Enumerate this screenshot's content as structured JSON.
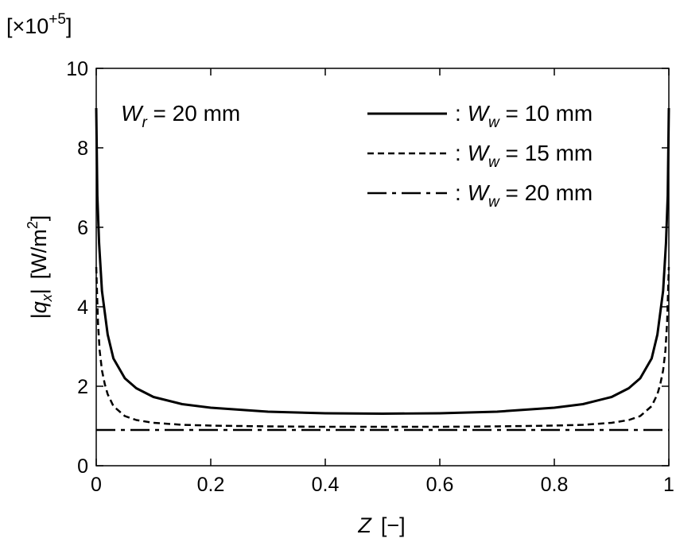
{
  "chart_data": {
    "type": "line",
    "scale_note": {
      "text": "[×10",
      "exp": "+5",
      "close": "]"
    },
    "xlabel": {
      "symbol": "Z",
      "unit": "[−]"
    },
    "ylabel": {
      "pre": "|",
      "symbol": "q",
      "sub": "x",
      "post": "|",
      "unit": "[W/m",
      "unit_sup": "2",
      "unit_close": "]"
    },
    "xlim": [
      0,
      1
    ],
    "ylim": [
      0,
      10
    ],
    "xticks": [
      0,
      0.2,
      0.4,
      0.6,
      0.8,
      1
    ],
    "xtick_labels": [
      "0",
      "0.2",
      "0.4",
      "0.6",
      "0.8",
      "1"
    ],
    "yticks": [
      0,
      2,
      4,
      6,
      8,
      10
    ],
    "ytick_labels": [
      "0",
      "2",
      "4",
      "6",
      "8",
      "10"
    ],
    "annotation": {
      "symbol": "W",
      "sub": "r",
      "rest": " = 20 mm"
    },
    "series": [
      {
        "name": "W_w = 10 mm",
        "legend": {
          "prefix": ": ",
          "symbol": "W",
          "sub": "w",
          "rest": " = 10 mm"
        },
        "style": "solid",
        "x": [
          0,
          0.002,
          0.005,
          0.01,
          0.02,
          0.03,
          0.05,
          0.07,
          0.1,
          0.15,
          0.2,
          0.3,
          0.4,
          0.5,
          0.6,
          0.7,
          0.8,
          0.85,
          0.9,
          0.93,
          0.95,
          0.97,
          0.98,
          0.99,
          0.995,
          0.998,
          1
        ],
        "values": [
          9.0,
          6.8,
          5.6,
          4.4,
          3.3,
          2.7,
          2.2,
          1.95,
          1.73,
          1.55,
          1.46,
          1.36,
          1.32,
          1.31,
          1.32,
          1.36,
          1.46,
          1.55,
          1.73,
          1.95,
          2.2,
          2.7,
          3.3,
          4.4,
          5.6,
          6.8,
          9.0
        ]
      },
      {
        "name": "W_w = 15 mm",
        "legend": {
          "prefix": ": ",
          "symbol": "W",
          "sub": "w",
          "rest": " = 15 mm"
        },
        "style": "dashed",
        "x": [
          0,
          0.003,
          0.006,
          0.01,
          0.015,
          0.02,
          0.03,
          0.05,
          0.07,
          0.1,
          0.15,
          0.2,
          0.3,
          0.4,
          0.5,
          0.6,
          0.7,
          0.8,
          0.85,
          0.9,
          0.93,
          0.95,
          0.97,
          0.98,
          0.985,
          0.99,
          0.994,
          0.997,
          1
        ],
        "values": [
          5.0,
          3.6,
          2.9,
          2.4,
          2.05,
          1.8,
          1.5,
          1.25,
          1.15,
          1.08,
          1.03,
          1.01,
          0.99,
          0.98,
          0.98,
          0.98,
          0.99,
          1.01,
          1.03,
          1.08,
          1.15,
          1.25,
          1.5,
          1.8,
          2.05,
          2.4,
          2.9,
          3.6,
          5.0
        ]
      },
      {
        "name": "W_w = 20 mm",
        "legend": {
          "prefix": ": ",
          "symbol": "W",
          "sub": "w",
          "rest": " = 20 mm"
        },
        "style": "dashdot",
        "x": [
          0,
          1
        ],
        "values": [
          0.9,
          0.9
        ]
      }
    ]
  }
}
